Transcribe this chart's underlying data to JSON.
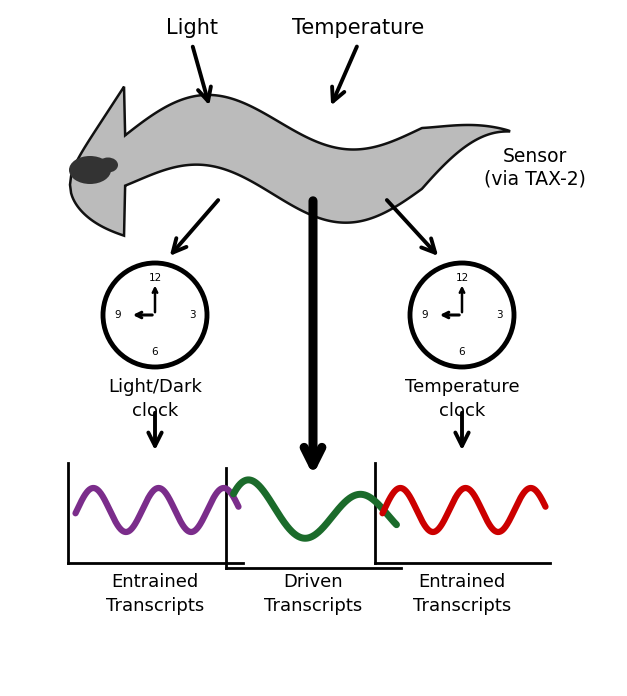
{
  "bg_color": "#ffffff",
  "text_color": "#000000",
  "light_label": "Light",
  "temp_label": "Temperature",
  "sensor_label": "Sensor\n(via TAX-2)",
  "ld_clock_label": "Light/Dark\nclock",
  "temp_clock_label": "Temperature\nclock",
  "left_wave_label": "Entrained\nTranscripts",
  "center_wave_label": "Driven\nTranscripts",
  "right_wave_label": "Entrained\nTranscripts",
  "left_wave_color": "#7B2D8B",
  "center_wave_color": "#1B6B2B",
  "right_wave_color": "#CC0000",
  "worm_body_color": "#BBBBBB",
  "worm_outline_color": "#111111",
  "worm_head_color": "#333333",
  "clock_face_color": "#ffffff",
  "clock_outline_color": "#000000",
  "figsize": [
    6.27,
    6.96
  ],
  "dpi": 100
}
